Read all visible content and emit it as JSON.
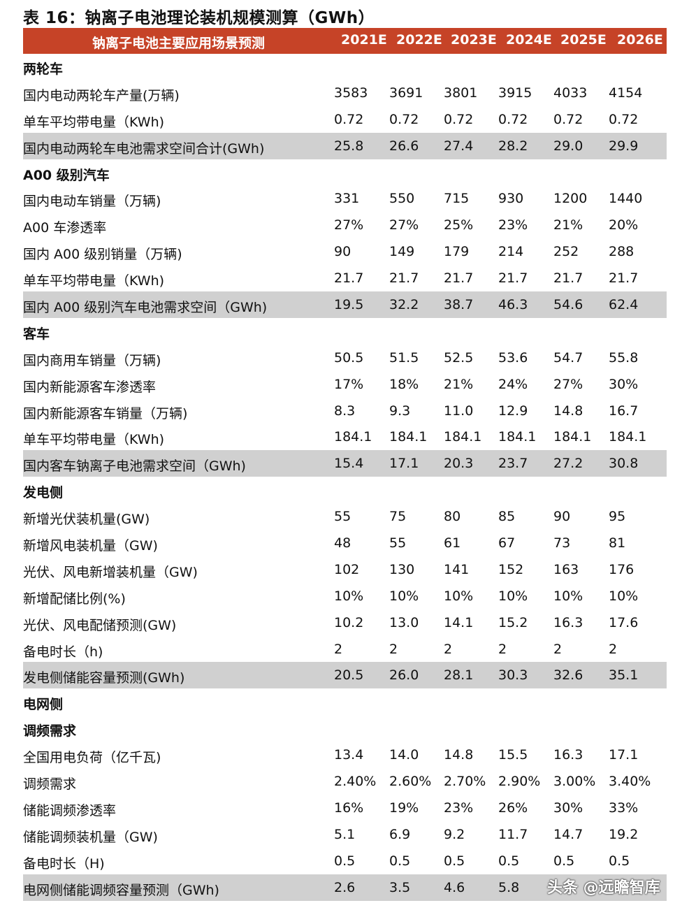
{
  "title": "表 16：钠离子电池理论装机规模测算（GWh）",
  "header": {
    "label": "钠离子电池主要应用场景预测",
    "years": [
      "2021E",
      "2022E",
      "2023E",
      "2024E",
      "2025E",
      "2026E"
    ]
  },
  "accent_color": "#c64327",
  "rows": [
    {
      "type": "section",
      "label": "两轮车"
    },
    {
      "label": "国内电动两轮车产量(万辆)",
      "values": [
        "3583",
        "3691",
        "3801",
        "3915",
        "4033",
        "4154"
      ]
    },
    {
      "label": "单车平均带电量（KWh)",
      "values": [
        "0.72",
        "0.72",
        "0.72",
        "0.72",
        "0.72",
        "0.72"
      ]
    },
    {
      "type": "total",
      "label": "国内电动两轮车电池需求空间合计(GWh)",
      "values": [
        "25.8",
        "26.6",
        "27.4",
        "28.2",
        "29.0",
        "29.9"
      ]
    },
    {
      "type": "section",
      "label": "A00 级别汽车"
    },
    {
      "label": "国内电动车销量（万辆)",
      "values": [
        "331",
        "550",
        "715",
        "930",
        "1200",
        "1440"
      ]
    },
    {
      "label": "A00 车渗透率",
      "values": [
        "27%",
        "27%",
        "25%",
        "23%",
        "21%",
        "20%"
      ]
    },
    {
      "label": "国内 A00 级别销量（万辆)",
      "values": [
        "90",
        "149",
        "179",
        "214",
        "252",
        "288"
      ]
    },
    {
      "label": "单车平均带电量（KWh)",
      "values": [
        "21.7",
        "21.7",
        "21.7",
        "21.7",
        "21.7",
        "21.7"
      ]
    },
    {
      "type": "total",
      "label": "国内 A00 级别汽车电池需求空间（GWh)",
      "values": [
        "19.5",
        "32.2",
        "38.7",
        "46.3",
        "54.6",
        "62.4"
      ]
    },
    {
      "type": "section",
      "label": "客车"
    },
    {
      "label": "国内商用车销量（万辆)",
      "values": [
        "50.5",
        "51.5",
        "52.5",
        "53.6",
        "54.7",
        "55.8"
      ]
    },
    {
      "label": "国内新能源客车渗透率",
      "values": [
        "17%",
        "18%",
        "21%",
        "24%",
        "27%",
        "30%"
      ]
    },
    {
      "label": "国内新能源客车销量（万辆)",
      "values": [
        "8.3",
        "9.3",
        "11.0",
        "12.9",
        "14.8",
        "16.7"
      ]
    },
    {
      "label": "单车平均带电量（KWh)",
      "values": [
        "184.1",
        "184.1",
        "184.1",
        "184.1",
        "184.1",
        "184.1"
      ]
    },
    {
      "type": "total",
      "label": "国内客车钠离子电池需求空间（GWh)",
      "values": [
        "15.4",
        "17.1",
        "20.3",
        "23.7",
        "27.2",
        "30.8"
      ]
    },
    {
      "type": "section",
      "label": "发电侧"
    },
    {
      "label": "新增光伏装机量(GW)",
      "values": [
        "55",
        "75",
        "80",
        "85",
        "90",
        "95"
      ]
    },
    {
      "label": "新增风电装机量（GW)",
      "values": [
        "48",
        "55",
        "61",
        "67",
        "73",
        "81"
      ]
    },
    {
      "label": "光伏、风电新增装机量（GW)",
      "values": [
        "102",
        "130",
        "141",
        "152",
        "163",
        "176"
      ]
    },
    {
      "label": "新增配储比例(%)",
      "values": [
        "10%",
        "10%",
        "10%",
        "10%",
        "10%",
        "10%"
      ]
    },
    {
      "label": "光伏、风电配储预测(GW)",
      "values": [
        "10.2",
        "13.0",
        "14.1",
        "15.2",
        "16.3",
        "17.6"
      ]
    },
    {
      "label": "备电时长（h)",
      "values": [
        "2",
        "2",
        "2",
        "2",
        "2",
        "2"
      ]
    },
    {
      "type": "total",
      "label": "发电侧储能容量预测(GWh)",
      "values": [
        "20.5",
        "26.0",
        "28.1",
        "30.3",
        "32.6",
        "35.1"
      ]
    },
    {
      "type": "section",
      "label": "电网侧"
    },
    {
      "type": "section",
      "label": "调频需求"
    },
    {
      "label": "全国用电负荷（亿千瓦)",
      "values": [
        "13.4",
        "14.0",
        "14.8",
        "15.5",
        "16.3",
        "17.1"
      ]
    },
    {
      "label": "调频需求",
      "values": [
        "2.40%",
        "2.60%",
        "2.70%",
        "2.90%",
        "3.00%",
        "3.40%"
      ]
    },
    {
      "label": "储能调频渗透率",
      "values": [
        "16%",
        "19%",
        "23%",
        "26%",
        "30%",
        "33%"
      ]
    },
    {
      "label": "储能调频装机量（GW)",
      "values": [
        "5.1",
        "6.9",
        "9.2",
        "11.7",
        "14.7",
        "19.2"
      ]
    },
    {
      "label": "备电时长（H)",
      "values": [
        "0.5",
        "0.5",
        "0.5",
        "0.5",
        "0.5",
        "0.5"
      ]
    },
    {
      "type": "total",
      "label": "电网侧储能调频容量预测（GWh)",
      "values": [
        "2.6",
        "3.5",
        "4.6",
        "5.8",
        "",
        ""
      ]
    }
  ],
  "watermark": "头条 @远瞻智库"
}
